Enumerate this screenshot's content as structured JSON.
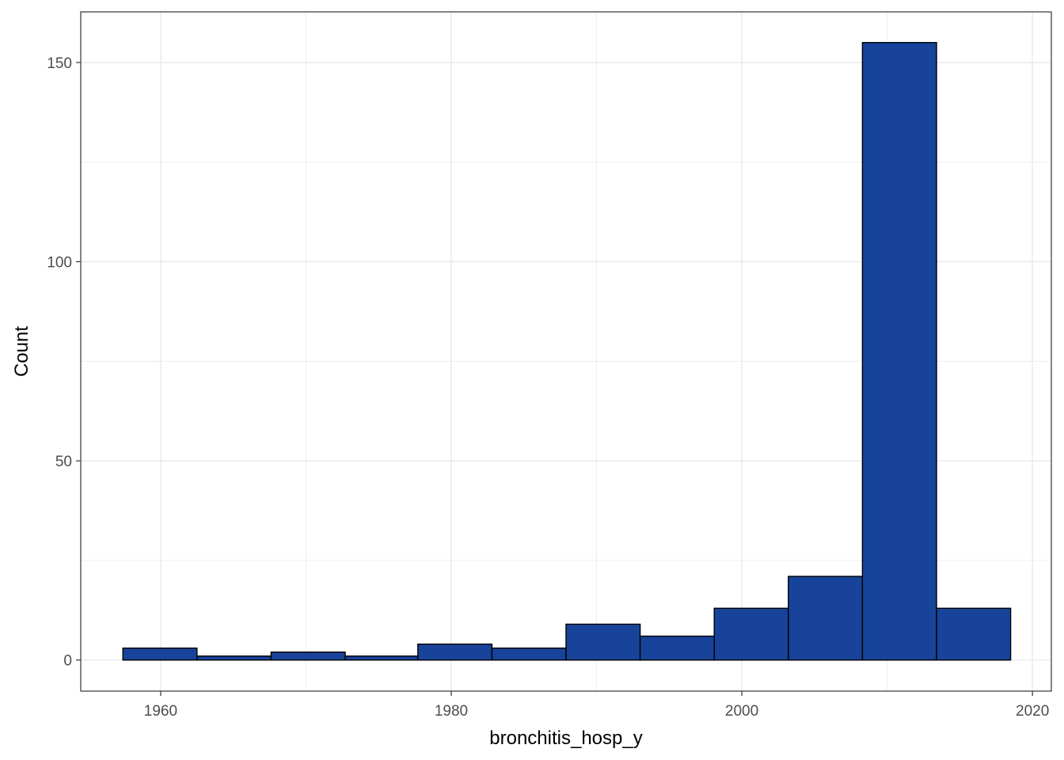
{
  "chart_data": {
    "type": "bar",
    "subtype": "histogram",
    "title": "",
    "xlabel": "bronchitis_hosp_y",
    "ylabel": "Count",
    "xlim": [
      1954.5,
      2021.3
    ],
    "ylim": [
      -7.8,
      162.7
    ],
    "x_ticks": [
      1960,
      1980,
      2000,
      2020
    ],
    "y_ticks": [
      0,
      50,
      100,
      150
    ],
    "grid": true,
    "legend": "none",
    "bins": [
      {
        "x0": 1957.4,
        "x1": 1962.5,
        "count": 3
      },
      {
        "x0": 1962.5,
        "x1": 1967.6,
        "count": 1
      },
      {
        "x0": 1967.6,
        "x1": 1972.7,
        "count": 2
      },
      {
        "x0": 1972.7,
        "x1": 1977.7,
        "count": 1
      },
      {
        "x0": 1977.7,
        "x1": 1982.8,
        "count": 4
      },
      {
        "x0": 1982.8,
        "x1": 1987.9,
        "count": 3
      },
      {
        "x0": 1987.9,
        "x1": 1993.0,
        "count": 9
      },
      {
        "x0": 1993.0,
        "x1": 1998.1,
        "count": 6
      },
      {
        "x0": 1998.1,
        "x1": 2003.2,
        "count": 13
      },
      {
        "x0": 2003.2,
        "x1": 2008.3,
        "count": 21
      },
      {
        "x0": 2008.3,
        "x1": 2013.4,
        "count": 155
      },
      {
        "x0": 2013.4,
        "x1": 2018.5,
        "count": 13
      }
    ],
    "colors": {
      "bar_fill": "#17449a",
      "bar_stroke": "#000000",
      "grid": "#ebebeb",
      "panel_border": "#333333"
    }
  }
}
